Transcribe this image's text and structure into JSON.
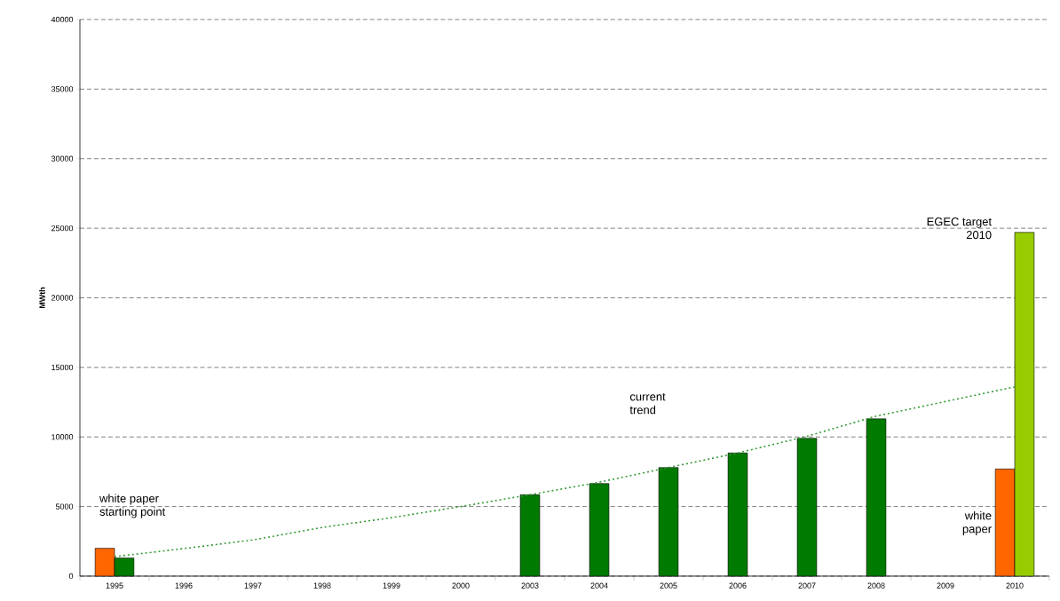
{
  "chart_data": {
    "type": "bar",
    "ylabel": "MWth",
    "categories": [
      "1995",
      "1996",
      "1997",
      "1998",
      "1999",
      "2000",
      "2003",
      "2004",
      "2005",
      "2006",
      "2007",
      "2008",
      "2009",
      "2010"
    ],
    "series": [
      {
        "color": "#ff6600",
        "values": [
          2000,
          null,
          null,
          null,
          null,
          null,
          null,
          null,
          null,
          null,
          null,
          null,
          null,
          7700
        ]
      },
      {
        "color": "#007a00",
        "values": [
          1300,
          null,
          null,
          null,
          null,
          null,
          5850,
          6650,
          7800,
          8850,
          9900,
          11300,
          null,
          null
        ]
      },
      {
        "color": "#99cc00",
        "values": [
          null,
          null,
          null,
          null,
          null,
          null,
          null,
          null,
          null,
          null,
          null,
          null,
          null,
          24700
        ]
      },
      {
        "type": "line",
        "color": "#339933",
        "line_style": "dotted",
        "values": [
          1400,
          1980,
          2600,
          3500,
          4200,
          5000,
          5850,
          6750,
          7800,
          8850,
          10050,
          11500,
          12550,
          13600
        ]
      }
    ],
    "ylim": [
      0,
      40000
    ],
    "yticks": [
      0,
      5000,
      10000,
      15000,
      20000,
      25000,
      30000,
      35000,
      40000
    ],
    "grid": "y",
    "annotations": [
      "white paper\nstarting point",
      "current\ntrend",
      {
        "text": "EGEC target\n2010",
        "x": "2010",
        "y": 25000
      },
      {
        "text": "white\npaper",
        "x": "2010",
        "y": 3800
      }
    ]
  }
}
